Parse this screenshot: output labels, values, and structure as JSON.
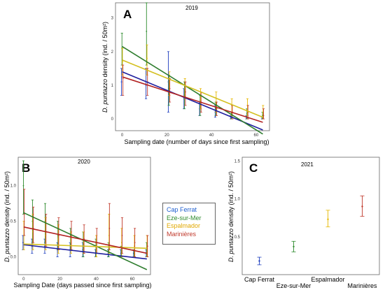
{
  "series_names": [
    "Cap Ferrat",
    "Eze-sur-Mer",
    "Espalmador",
    "Marinières"
  ],
  "series_colors": [
    "#1f3fbf",
    "#2e8b2e",
    "#e6b800",
    "#c0392b"
  ],
  "line_colors": [
    "#1f1f9f",
    "#2e7d2e",
    "#d4c020",
    "#b22222"
  ],
  "ylabel_italic": "D. puntazzo",
  "ylabel_rest": " density (ind. / 50m²)",
  "chart_data": [
    {
      "type": "scatter",
      "panel": "A",
      "title": "2019",
      "xlabel": "Sampling date (number of days since first sampling)",
      "ylabel": "D. puntazzo density (ind. / 50m²)",
      "xlim": [
        -3,
        66
      ],
      "ylim": [
        -0.35,
        3.45
      ],
      "xticks": [
        0,
        20,
        40,
        60
      ],
      "yticks": [
        0,
        1,
        2,
        3
      ],
      "grid": false,
      "series": [
        {
          "name": "Cap Ferrat",
          "x": [
            0,
            11,
            21,
            28,
            35,
            42,
            49,
            56,
            63
          ],
          "mean": [
            1.1,
            1.0,
            1.1,
            0.6,
            0.3,
            0.2,
            0.05,
            0.05,
            0.0
          ],
          "lo": [
            0.7,
            0.6,
            0.2,
            0.3,
            0.1,
            0.05,
            0.0,
            0.0,
            0.0
          ],
          "hi": [
            1.5,
            1.5,
            2.0,
            0.9,
            0.5,
            0.4,
            0.1,
            0.1,
            0.05
          ],
          "fit": [
            1.4,
            -0.33
          ]
        },
        {
          "name": "Eze-sur-Mer",
          "x": [
            0,
            11,
            21,
            28,
            35,
            42,
            49,
            56,
            63
          ],
          "mean": [
            2.1,
            2.6,
            0.9,
            0.7,
            0.4,
            0.3,
            0.1,
            0.15,
            0.1
          ],
          "lo": [
            1.6,
            1.6,
            0.4,
            0.3,
            0.1,
            0.1,
            0.0,
            0.0,
            0.0
          ],
          "hi": [
            2.55,
            3.45,
            1.3,
            1.1,
            0.7,
            0.5,
            0.2,
            0.3,
            0.2
          ],
          "fit": [
            2.15,
            -0.45
          ]
        },
        {
          "name": "Espalmador",
          "x": [
            0,
            11,
            21,
            28,
            35,
            42,
            49,
            56,
            63
          ],
          "mean": [
            1.7,
            1.8,
            1.1,
            0.9,
            0.6,
            0.5,
            0.4,
            0.4,
            0.2
          ],
          "lo": [
            1.3,
            1.3,
            0.7,
            0.6,
            0.3,
            0.2,
            0.1,
            0.1,
            0.0
          ],
          "hi": [
            2.1,
            2.2,
            1.4,
            1.2,
            0.9,
            0.8,
            0.6,
            0.6,
            0.4
          ],
          "fit": [
            1.75,
            0.05
          ]
        },
        {
          "name": "Marinières",
          "x": [
            0,
            11,
            21,
            28,
            35,
            42,
            49,
            56,
            63
          ],
          "mean": [
            1.2,
            1.1,
            0.9,
            0.8,
            0.5,
            0.3,
            0.2,
            0.2,
            0.1
          ],
          "lo": [
            0.7,
            0.7,
            0.5,
            0.4,
            0.2,
            0.1,
            0.0,
            0.0,
            0.0
          ],
          "hi": [
            1.6,
            1.5,
            1.2,
            1.1,
            0.8,
            0.5,
            0.4,
            0.4,
            0.3
          ],
          "fit": [
            1.25,
            -0.1
          ]
        }
      ]
    },
    {
      "type": "scatter",
      "panel": "B",
      "title": "2020",
      "xlabel": "Sampling Date (days passed since first sampling)",
      "ylabel": "D. puntazzo density (ind. / 50m²)",
      "xlim": [
        -3,
        70
      ],
      "ylim": [
        -0.25,
        1.4
      ],
      "xticks": [
        0,
        20,
        40,
        60
      ],
      "yticks": [
        0.0,
        0.5,
        1.0
      ],
      "grid": false,
      "series": [
        {
          "name": "Cap Ferrat",
          "x": [
            0,
            5,
            12,
            19,
            26,
            33,
            40,
            47,
            54,
            61,
            68
          ],
          "mean": [
            0.2,
            0.15,
            0.15,
            0.1,
            0.1,
            0.1,
            0.05,
            0.05,
            0.05,
            0.05,
            0.05
          ],
          "lo": [
            0.1,
            0.05,
            0.05,
            0.0,
            0.0,
            0.0,
            0.0,
            0.0,
            0.0,
            0.0,
            0.0
          ],
          "hi": [
            0.3,
            0.25,
            0.25,
            0.2,
            0.2,
            0.2,
            0.1,
            0.1,
            0.1,
            0.1,
            0.1
          ],
          "fit": [
            0.17,
            -0.03
          ]
        },
        {
          "name": "Eze-sur-Mer",
          "x": [
            0,
            5,
            12,
            19,
            26,
            33,
            40,
            47,
            54,
            61,
            68
          ],
          "mean": [
            1.0,
            0.5,
            0.5,
            0.3,
            0.3,
            0.2,
            0.1,
            0.1,
            0.05,
            0.0,
            0.1
          ],
          "lo": [
            0.6,
            0.2,
            0.2,
            0.1,
            0.1,
            0.0,
            0.0,
            0.0,
            0.0,
            0.0,
            0.0
          ],
          "hi": [
            1.35,
            0.8,
            0.75,
            0.5,
            0.4,
            0.35,
            0.25,
            0.2,
            0.15,
            0.1,
            0.2
          ],
          "fit": [
            0.62,
            -0.18
          ]
        },
        {
          "name": "Espalmador",
          "x": [
            0,
            5,
            12,
            19,
            26,
            33,
            40,
            47,
            54,
            61,
            68
          ],
          "mean": [
            0.3,
            0.35,
            0.3,
            0.25,
            0.2,
            0.2,
            0.15,
            0.3,
            0.2,
            0.15,
            0.15
          ],
          "lo": [
            0.1,
            0.1,
            0.1,
            0.05,
            0.05,
            0.05,
            0.0,
            0.05,
            0.0,
            0.0,
            0.0
          ],
          "hi": [
            0.5,
            0.6,
            0.55,
            0.45,
            0.35,
            0.35,
            0.3,
            0.6,
            0.4,
            0.3,
            0.3
          ],
          "fit": [
            0.18,
            0.12
          ]
        },
        {
          "name": "Marinières",
          "x": [
            0,
            5,
            12,
            19,
            26,
            33,
            40,
            47,
            54,
            61,
            68
          ],
          "mean": [
            0.6,
            0.4,
            0.35,
            0.3,
            0.3,
            0.25,
            0.2,
            0.4,
            0.3,
            0.2,
            0.15
          ],
          "lo": [
            0.3,
            0.2,
            0.15,
            0.1,
            0.1,
            0.05,
            0.05,
            0.1,
            0.05,
            0.0,
            0.0
          ],
          "hi": [
            0.95,
            0.7,
            0.6,
            0.55,
            0.5,
            0.45,
            0.4,
            0.75,
            0.55,
            0.4,
            0.3
          ],
          "fit": [
            0.42,
            0.05
          ]
        }
      ]
    },
    {
      "type": "scatter",
      "panel": "C",
      "title": "2021",
      "xlabel": "",
      "ylabel": "D. puntazzo density (ind. / 50m²)",
      "categories": [
        "Cap Ferrat",
        "Eze-sur-Mer",
        "Espalmador",
        "Marinières"
      ],
      "ylim": [
        0,
        1.55
      ],
      "yticks": [
        0.5,
        1.0,
        1.5
      ],
      "grid": false,
      "series": [
        {
          "name": "Cap Ferrat",
          "mean": 0.18,
          "lo": 0.13,
          "hi": 0.23
        },
        {
          "name": "Eze-sur-Mer",
          "mean": 0.37,
          "lo": 0.3,
          "hi": 0.44
        },
        {
          "name": "Espalmador",
          "mean": 0.73,
          "lo": 0.63,
          "hi": 0.85
        },
        {
          "name": "Marinières",
          "mean": 0.9,
          "lo": 0.77,
          "hi": 1.04
        }
      ]
    }
  ]
}
